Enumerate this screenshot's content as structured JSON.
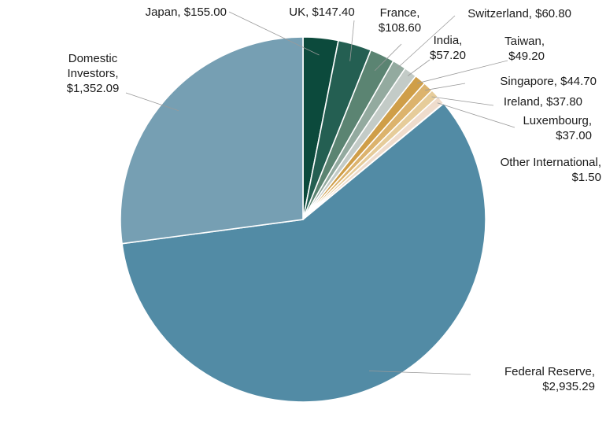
{
  "chart_data": {
    "type": "pie",
    "title": "",
    "start_angle_deg": 0,
    "direction": "clockwise",
    "legend": "none",
    "slices": [
      {
        "label": "Japan, $155.00",
        "label_lines": [
          "Japan, $155.00"
        ],
        "value": 155.0,
        "color": "#0c4a3c"
      },
      {
        "label": "UK, $147.40",
        "label_lines": [
          "UK, $147.40"
        ],
        "value": 147.4,
        "color": "#245f52"
      },
      {
        "label": "France, $108.60",
        "label_lines": [
          "France,",
          "$108.60"
        ],
        "value": 108.6,
        "color": "#5b8472"
      },
      {
        "label": "Switzerland, $60.80",
        "label_lines": [
          "Switzerland, $60.80"
        ],
        "value": 60.8,
        "color": "#93aa9f"
      },
      {
        "label": "India, $57.20",
        "label_lines": [
          "India,",
          "$57.20"
        ],
        "value": 57.2,
        "color": "#c3cbc7"
      },
      {
        "label": "Taiwan, $49.20",
        "label_lines": [
          "Taiwan,",
          "$49.20"
        ],
        "value": 49.2,
        "color": "#cf9e48"
      },
      {
        "label": "Singapore, $44.70",
        "label_lines": [
          "Singapore, $44.70"
        ],
        "value": 44.7,
        "color": "#dcb36d"
      },
      {
        "label": "Ireland, $37.80",
        "label_lines": [
          "Ireland, $37.80"
        ],
        "value": 37.8,
        "color": "#e6cc9a"
      },
      {
        "label": "Luxembourg, $37.00",
        "label_lines": [
          "Luxembourg,",
          "$37.00"
        ],
        "value": 37.0,
        "color": "#efdccc"
      },
      {
        "label": "Other International, $1.50",
        "label_lines": [
          "Other International,",
          "$1.50"
        ],
        "value": 1.5,
        "color": "#e9e2dc"
      },
      {
        "label": "Federal Reserve, $2,935.29",
        "label_lines": [
          "Federal Reserve,",
          "$2,935.29"
        ],
        "value": 2935.29,
        "color": "#528ba5"
      },
      {
        "label": "Domestic Investors, $1,352.09",
        "label_lines": [
          "Domestic",
          "Investors,",
          "$1,352.09"
        ],
        "value": 1352.09,
        "color": "#769fb3"
      }
    ]
  }
}
